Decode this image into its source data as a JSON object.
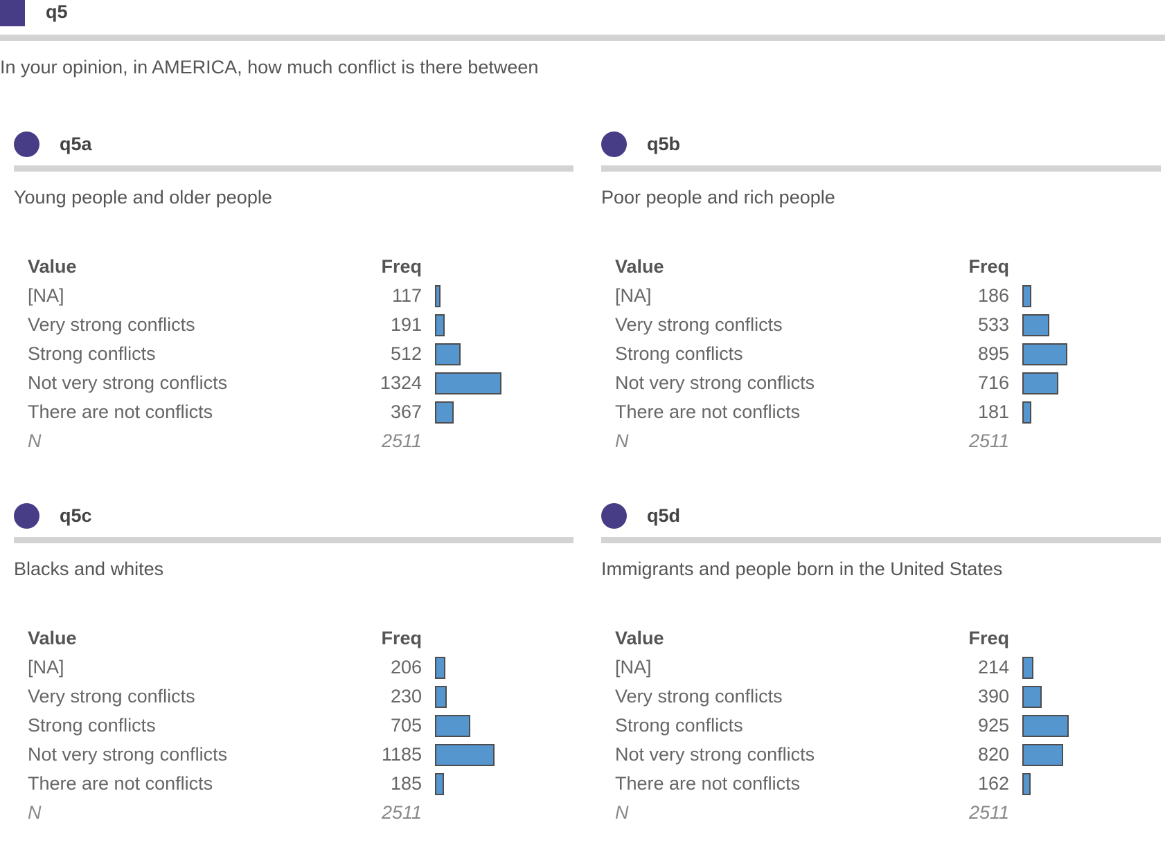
{
  "colors": {
    "accent": "#463d86",
    "bar": "#5596cf",
    "bar_border": "#4d4d4d"
  },
  "header": {
    "icon": "square-icon",
    "title": "q5"
  },
  "question": "In your opinion, in AMERICA, how much conflict is there between",
  "table_headers": {
    "value": "Value",
    "freq": "Freq"
  },
  "panels": [
    {
      "id": "q5a",
      "subtitle": "Young people and older people",
      "rows": [
        {
          "label": "[NA]",
          "freq": 117
        },
        {
          "label": "Very strong conflicts",
          "freq": 191
        },
        {
          "label": "Strong conflicts",
          "freq": 512
        },
        {
          "label": "Not very strong conflicts",
          "freq": 1324
        },
        {
          "label": "There are not conflicts",
          "freq": 367
        }
      ],
      "n_label": "N",
      "n": 2511
    },
    {
      "id": "q5b",
      "subtitle": "Poor people and rich people",
      "rows": [
        {
          "label": "[NA]",
          "freq": 186
        },
        {
          "label": "Very strong conflicts",
          "freq": 533
        },
        {
          "label": "Strong conflicts",
          "freq": 895
        },
        {
          "label": "Not very strong conflicts",
          "freq": 716
        },
        {
          "label": "There are not conflicts",
          "freq": 181
        }
      ],
      "n_label": "N",
      "n": 2511
    },
    {
      "id": "q5c",
      "subtitle": "Blacks and whites",
      "rows": [
        {
          "label": "[NA]",
          "freq": 206
        },
        {
          "label": "Very strong conflicts",
          "freq": 230
        },
        {
          "label": "Strong conflicts",
          "freq": 705
        },
        {
          "label": "Not very strong conflicts",
          "freq": 1185
        },
        {
          "label": "There are not conflicts",
          "freq": 185
        }
      ],
      "n_label": "N",
      "n": 2511
    },
    {
      "id": "q5d",
      "subtitle": "Immigrants and people born in the United States",
      "rows": [
        {
          "label": "[NA]",
          "freq": 214
        },
        {
          "label": "Very strong conflicts",
          "freq": 390
        },
        {
          "label": "Strong conflicts",
          "freq": 925
        },
        {
          "label": "Not very strong conflicts",
          "freq": 820
        },
        {
          "label": "There are not conflicts",
          "freq": 162
        }
      ],
      "n_label": "N",
      "n": 2511
    }
  ]
}
